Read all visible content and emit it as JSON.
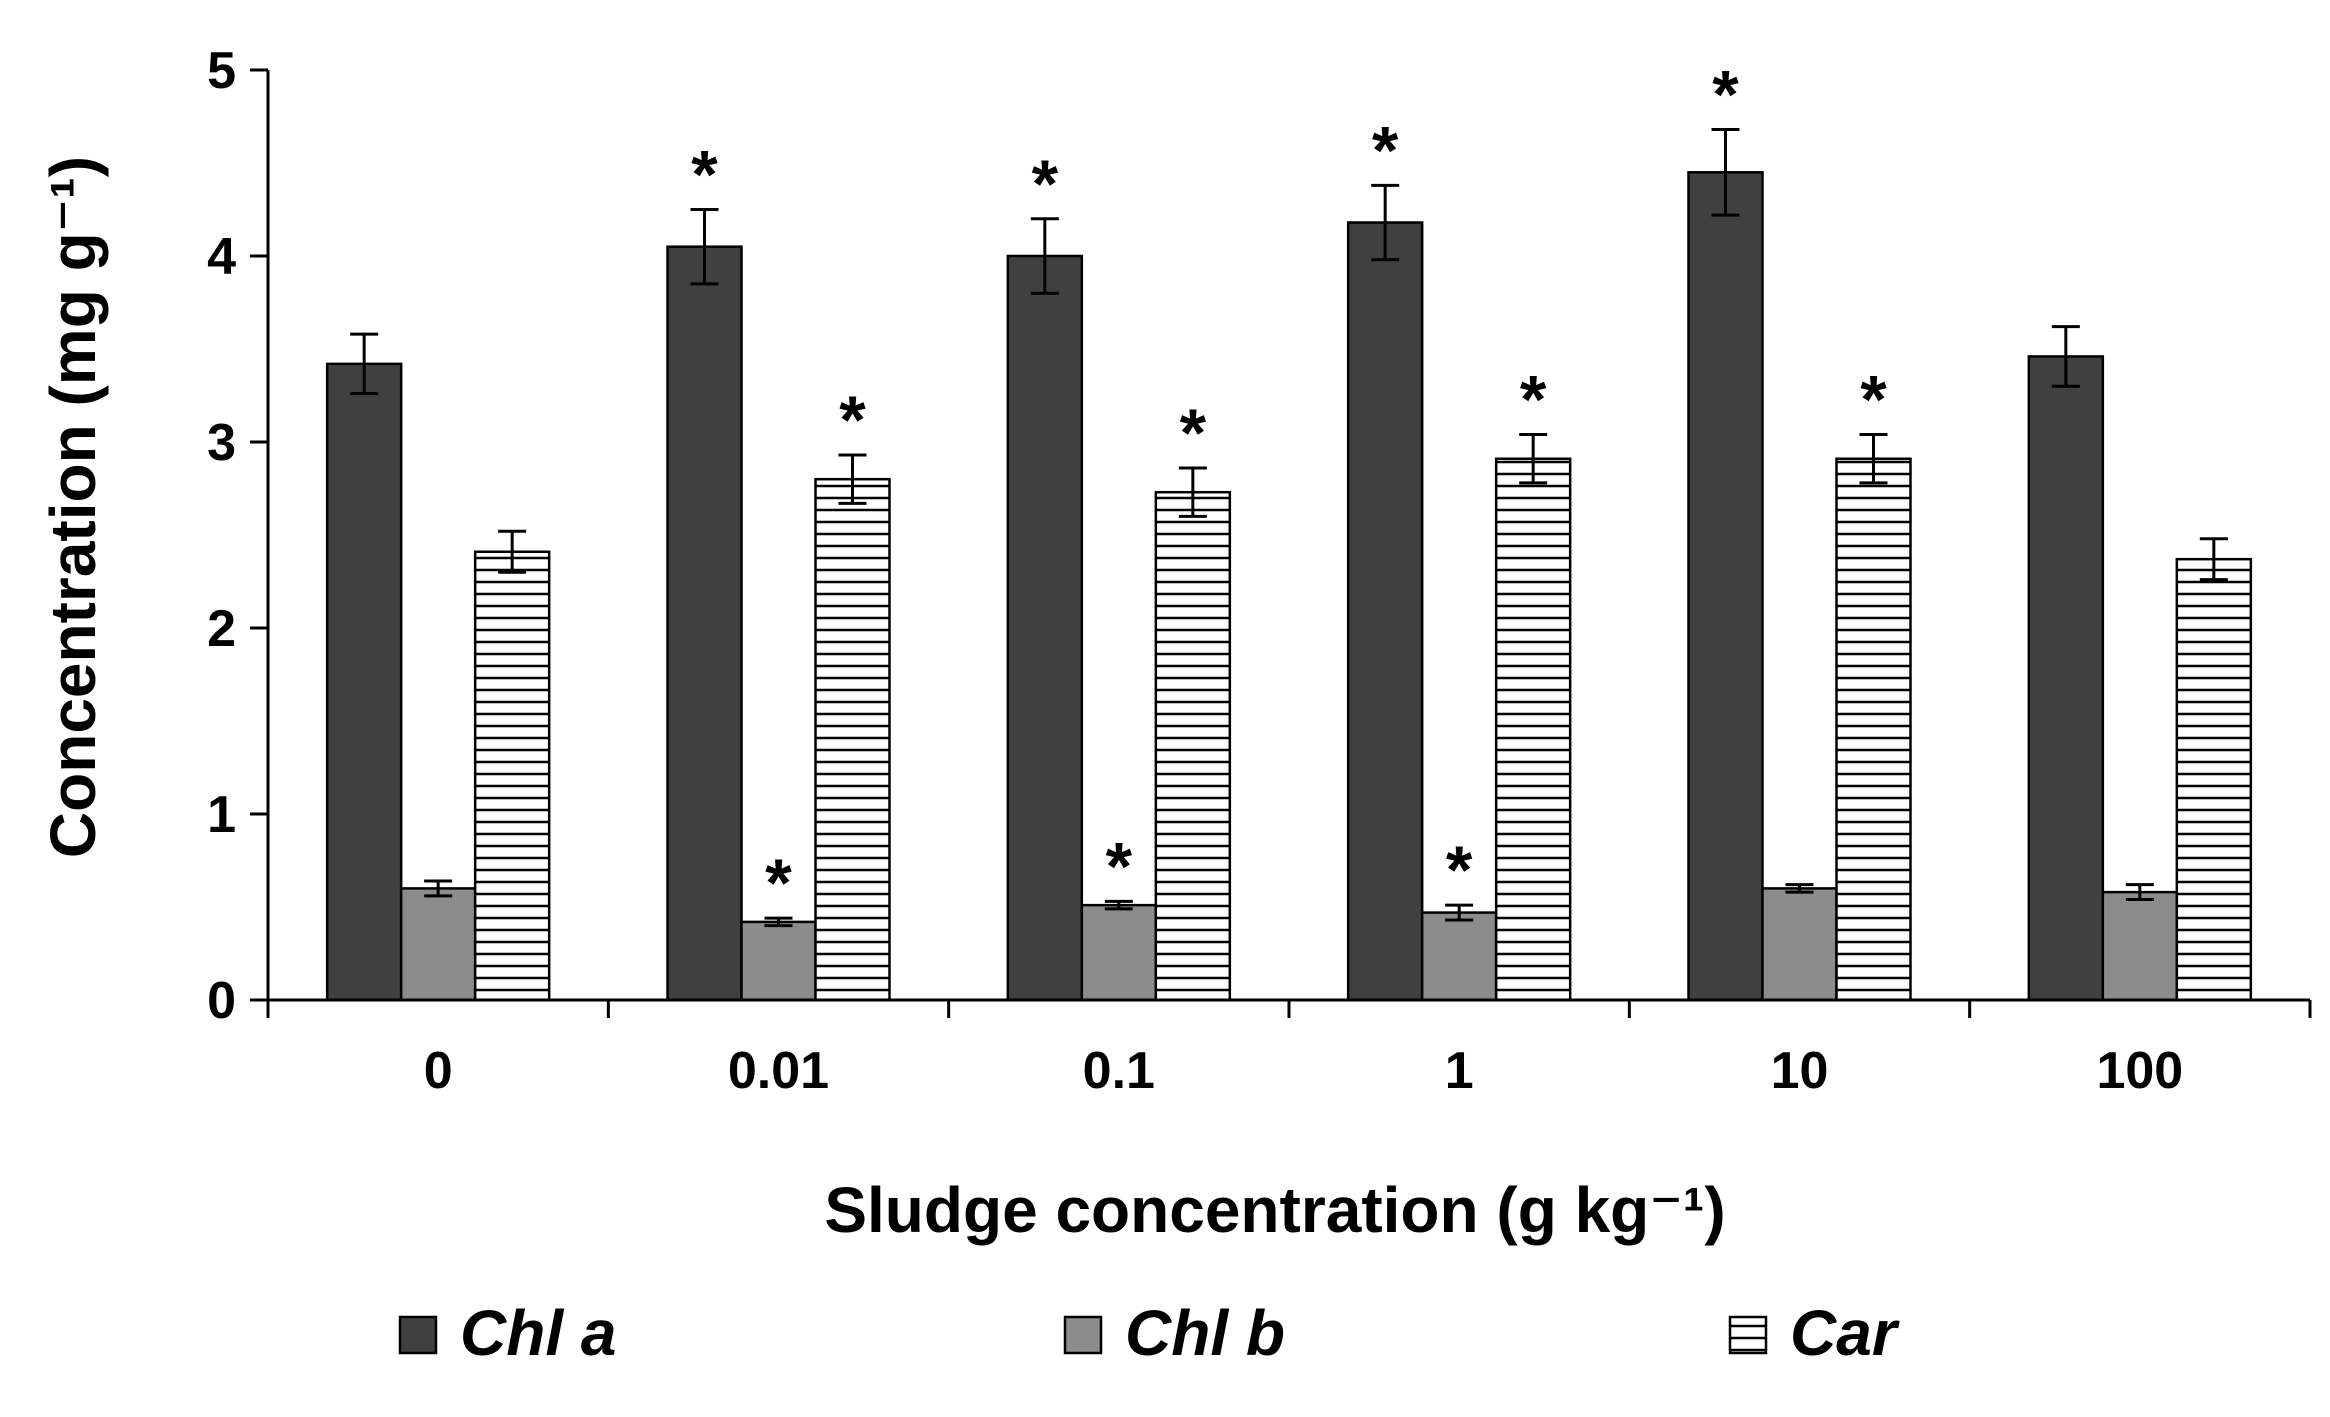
{
  "chart_data": {
    "type": "bar",
    "title": "",
    "xlabel": "Sludge concentration (g kg⁻¹)",
    "ylabel": "Concentration (mg g⁻¹)",
    "ylim": [
      0,
      5
    ],
    "yticks": [
      "0",
      "1",
      "2",
      "3",
      "4",
      "5"
    ],
    "categories": [
      "0",
      "0.01",
      "0.1",
      "1",
      "10",
      "100"
    ],
    "series": [
      {
        "name": "Chl a",
        "color": "#404040",
        "pattern": "solid",
        "values": [
          3.42,
          4.05,
          4.0,
          4.18,
          4.45,
          3.46
        ],
        "errors": [
          0.16,
          0.2,
          0.2,
          0.2,
          0.23,
          0.16
        ],
        "significant": [
          false,
          true,
          true,
          true,
          true,
          false
        ]
      },
      {
        "name": "Chl b",
        "color": "#8c8c8c",
        "pattern": "solid",
        "values": [
          0.6,
          0.42,
          0.51,
          0.47,
          0.6,
          0.58
        ],
        "errors": [
          0.04,
          0.02,
          0.02,
          0.04,
          0.02,
          0.04
        ],
        "significant": [
          false,
          true,
          true,
          true,
          false,
          false
        ]
      },
      {
        "name": "Car",
        "color": "#ffffff",
        "pattern": "horizontal-stripes",
        "values": [
          2.41,
          2.8,
          2.73,
          2.91,
          2.91,
          2.37
        ],
        "errors": [
          0.11,
          0.13,
          0.13,
          0.13,
          0.13,
          0.11
        ],
        "significant": [
          false,
          true,
          true,
          true,
          true,
          false
        ]
      }
    ],
    "significance_marker": "*",
    "legend": {
      "position": "bottom",
      "entries": [
        "Chl a",
        "Chl b",
        "Car"
      ]
    },
    "grid": false
  }
}
